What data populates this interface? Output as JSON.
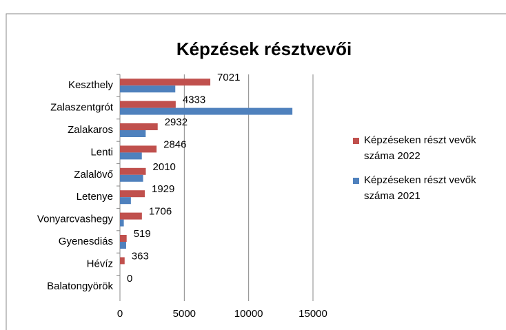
{
  "chart_data": {
    "type": "bar",
    "orientation": "horizontal",
    "title": "Képzések résztvevői",
    "categories": [
      "Keszthely",
      "Zalaszentgrót",
      "Zalakaros",
      "Lenti",
      "Zalalövő",
      "Letenye",
      "Vonyarcvashegy",
      "Gyenesdiás",
      "Hévíz",
      "Balatongyörök"
    ],
    "series": [
      {
        "name": "Képzéseken részt vevők száma 2022",
        "color": "#c0504d",
        "values": [
          7021,
          4333,
          2932,
          2846,
          2010,
          1929,
          1706,
          519,
          363,
          0
        ],
        "data_labels": true
      },
      {
        "name": "Képzéseken részt vevők száma 2021",
        "color": "#4f81bd",
        "values": [
          4300,
          13400,
          2000,
          1700,
          1800,
          850,
          300,
          480,
          0,
          0
        ],
        "data_labels": false
      }
    ],
    "xlim": [
      0,
      15000
    ],
    "xticks": [
      0,
      5000,
      10000,
      15000
    ],
    "grid": true,
    "legend": "right"
  }
}
